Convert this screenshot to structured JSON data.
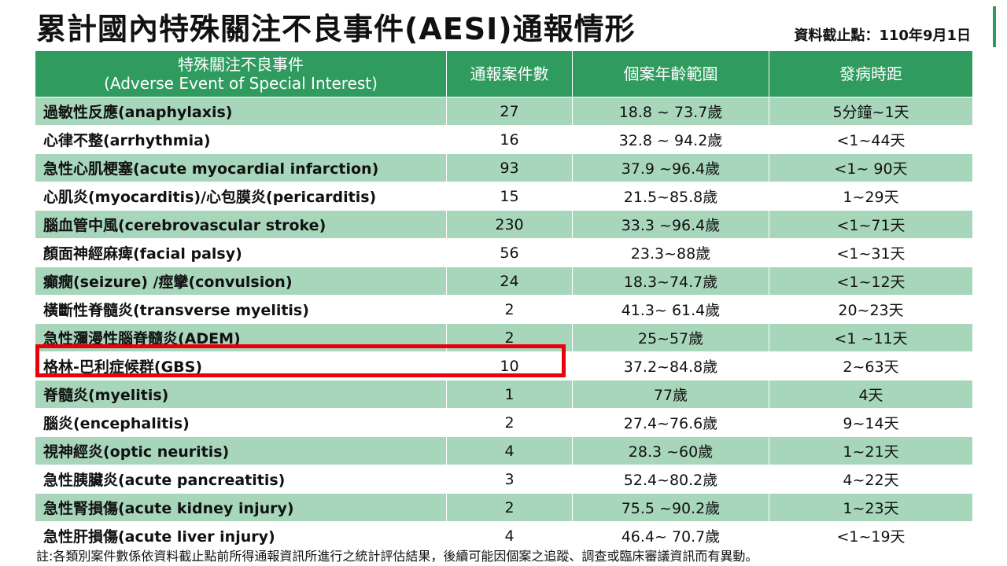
{
  "title": "累計國內特殊關注不良事件(AESI)通報情形",
  "cutoff": "資料截止點：110年9月1日",
  "colors": {
    "header_bg": "#2f9b5e",
    "band_bg": "#a7d6bb",
    "highlight": "#e8000b"
  },
  "table": {
    "headers": {
      "event_zh": "特殊關注不良事件",
      "event_en": "(Adverse Event of Special Interest)",
      "count": "通報案件數",
      "age_range": "個案年齡範圍",
      "onset": "發病時距"
    },
    "rows": [
      {
        "event": "過敏性反應(anaphylaxis)",
        "count": "27",
        "age": "18.8 ~ 73.7歲",
        "onset": "5分鐘~1天"
      },
      {
        "event": "心律不整(arrhythmia)",
        "count": "16",
        "age": "32.8 ~ 94.2歲",
        "onset": "<1~44天"
      },
      {
        "event": "急性心肌梗塞(acute myocardial infarction)",
        "count": "93",
        "age": "37.9 ~96.4歲",
        "onset": "<1~ 90天"
      },
      {
        "event": "心肌炎(myocarditis)/心包膜炎(pericarditis)",
        "count": "15",
        "age": "21.5~85.8歲",
        "onset": "1~29天"
      },
      {
        "event": "腦血管中風(cerebrovascular stroke)",
        "count": "230",
        "age": "33.3 ~96.4歲",
        "onset": "<1~71天"
      },
      {
        "event": "顏面神經麻痺(facial palsy)",
        "count": "56",
        "age": "23.3~88歲",
        "onset": "<1~31天"
      },
      {
        "event": "癲癇(seizure) /痙攣(convulsion)",
        "count": "24",
        "age": "18.3~74.7歲",
        "onset": "<1~12天"
      },
      {
        "event": "橫斷性脊髓炎(transverse myelitis)",
        "count": "2",
        "age": "41.3~ 61.4歲",
        "onset": "20~23天"
      },
      {
        "event": "急性瀰漫性腦脊髓炎(ADEM)",
        "count": "2",
        "age": "25~57歲",
        "onset": "<1 ~11天"
      },
      {
        "event": "格林-巴利症候群(GBS)",
        "count": "10",
        "age": "37.2~84.8歲",
        "onset": "2~63天"
      },
      {
        "event": "脊髓炎(myelitis)",
        "count": "1",
        "age": "77歲",
        "onset": "4天"
      },
      {
        "event": "腦炎(encephalitis)",
        "count": "2",
        "age": "27.4~76.6歲",
        "onset": "9~14天"
      },
      {
        "event": "視神經炎(optic neuritis)",
        "count": "4",
        "age": "28.3 ~60歲",
        "onset": "1~21天"
      },
      {
        "event": "急性胰臟炎(acute pancreatitis)",
        "count": "3",
        "age": "52.4~80.2歲",
        "onset": "4~22天"
      },
      {
        "event": "急性腎損傷(acute kidney injury)",
        "count": "2",
        "age": "75.5 ~90.2歲",
        "onset": "1~23天"
      },
      {
        "event": "急性肝損傷(acute liver injury)",
        "count": "4",
        "age": "46.4~ 70.7歲",
        "onset": "<1~19天"
      }
    ]
  },
  "footnote": "註:各類別案件數係依資料截止點前所得通報資訊所進行之統計評估結果，後續可能因個案之追蹤、調查或臨床審議資訊而有異動。"
}
